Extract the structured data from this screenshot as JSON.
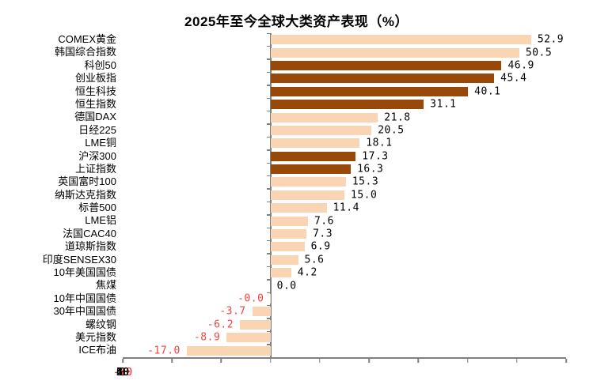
{
  "chart_data": {
    "type": "bar",
    "orientation": "horizontal",
    "title": "2025年至今全球大类资产表现（%）",
    "xlabel": "",
    "ylabel": "",
    "xlim": [
      -30,
      60
    ],
    "xticks": [
      -30,
      -20,
      -10,
      0,
      10,
      20,
      30,
      40,
      50,
      60
    ],
    "grid": false,
    "legend": false,
    "categories": [
      "COMEX黄金",
      "韩国综合指数",
      "科创50",
      "创业板指",
      "恒生科技",
      "恒生指数",
      "德国DAX",
      "日经225",
      "LME铜",
      "沪深300",
      "上证指数",
      "英国富时100",
      "纳斯达克指数",
      "标普500",
      "LME铝",
      "法国CAC40",
      "道琼斯指数",
      "印度SENSEX30",
      "10年美国国债",
      "焦煤",
      "10年中国国债",
      "30年中国国债",
      "螺纹钢",
      "美元指数",
      "ICE布油"
    ],
    "values": [
      52.9,
      50.5,
      46.9,
      45.4,
      40.1,
      31.1,
      21.8,
      20.5,
      18.1,
      17.3,
      16.3,
      15.3,
      15.0,
      11.4,
      7.6,
      7.3,
      6.9,
      5.6,
      4.2,
      0.0,
      -0.04,
      -3.7,
      -6.2,
      -8.9,
      -17.0
    ],
    "value_labels": [
      "52.9",
      "50.5",
      "46.9",
      "45.4",
      "40.1",
      "31.1",
      "21.8",
      "20.5",
      "18.1",
      "17.3",
      "16.3",
      "15.3",
      "15.0",
      "11.4",
      "7.6",
      "7.3",
      "6.9",
      "5.6",
      "4.2",
      "0.0",
      "-0.0",
      "-3.7",
      "-6.2",
      "-8.9",
      "-17.0"
    ],
    "bar_styles": [
      "light",
      "light",
      "dark",
      "dark",
      "dark",
      "dark",
      "light",
      "light",
      "light",
      "dark",
      "dark",
      "light",
      "light",
      "light",
      "light",
      "light",
      "light",
      "light",
      "light",
      "light",
      "light",
      "light",
      "light",
      "light",
      "light"
    ],
    "colors": {
      "light_bar": "#FAD5B3",
      "dark_bar": "#98490A",
      "positive_text": "#000000",
      "negative_text": "#FA4040",
      "axis": "#808080"
    }
  }
}
